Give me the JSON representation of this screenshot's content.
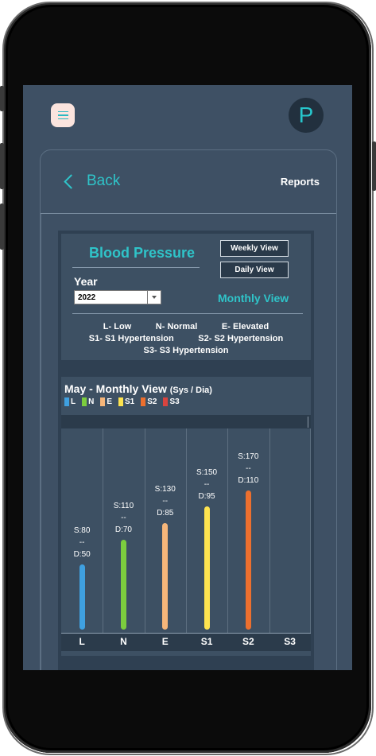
{
  "header": {
    "avatar_letter": "P"
  },
  "nav": {
    "back_label": "Back",
    "reports_label": "Reports"
  },
  "panel": {
    "title": "Blood Pressure",
    "year_label": "Year",
    "year_value": "2022",
    "weekly_button": "Weekly View",
    "daily_button": "Daily View",
    "monthly_label": "Monthly View",
    "legend_line1": "L- Low          N- Normal          E- Elevated",
    "legend_line2": "S1- S1 Hypertension          S2- S2 Hypertension",
    "legend_line3": "S3- S3 Hypertension"
  },
  "chart": {
    "title_main": "May - Monthly View",
    "title_units": "(Sys / Dia)",
    "key": [
      {
        "label": "L",
        "color": "#3fa0e0"
      },
      {
        "label": "N",
        "color": "#7ccd3e"
      },
      {
        "label": "E",
        "color": "#f6b67a"
      },
      {
        "label": "S1",
        "color": "#fde34f"
      },
      {
        "label": "S2",
        "color": "#ec6f2e"
      },
      {
        "label": "S3",
        "color": "#d9443f"
      }
    ]
  },
  "chart_data": {
    "type": "bar",
    "title": "May - Monthly View (Sys / Dia)",
    "categories": [
      "L",
      "N",
      "E",
      "S1",
      "S2",
      "S3"
    ],
    "series": [
      {
        "name": "Systolic",
        "values": [
          80,
          110,
          130,
          150,
          170,
          null
        ]
      },
      {
        "name": "Diastolic",
        "values": [
          50,
          70,
          85,
          95,
          110,
          null
        ]
      }
    ],
    "data_labels": [
      {
        "sys": "S:80",
        "sep": "--",
        "dia": "D:50"
      },
      {
        "sys": "S:110",
        "sep": "--",
        "dia": "D:70"
      },
      {
        "sys": "S:130",
        "sep": "--",
        "dia": "D:85"
      },
      {
        "sys": "S:150",
        "sep": "--",
        "dia": "D:95"
      },
      {
        "sys": "S:170",
        "sep": "--",
        "dia": "D:110"
      },
      null
    ],
    "bar_colors": [
      "#3fa0e0",
      "#7ccd3e",
      "#f6b67a",
      "#fde34f",
      "#ec6f2e",
      "#d9443f"
    ],
    "ylim": [
      0,
      230
    ]
  }
}
